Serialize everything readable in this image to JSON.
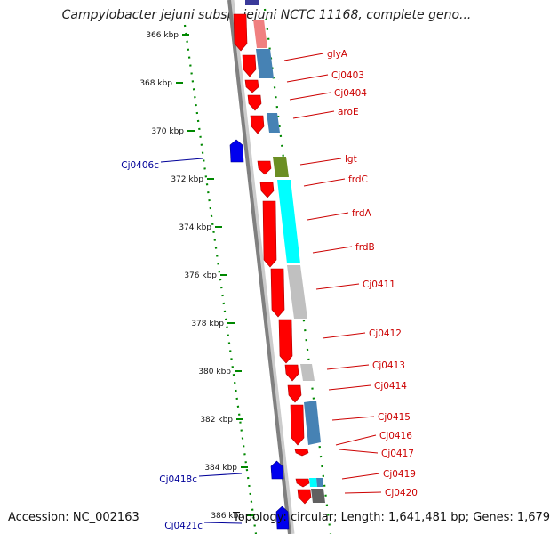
{
  "title": "Campylobacter jejuni subsp. jejuni NCTC 11168, complete geno...",
  "accession": "Accession: NC_002163",
  "summary": "Topology: circular; Length: 1,641,481 bp; Genes: 1,679",
  "ticks": [
    "366 kbp",
    "368 kbp",
    "370 kbp",
    "372 kbp",
    "374 kbp",
    "376 kbp",
    "378 kbp",
    "380 kbp",
    "382 kbp",
    "384 kbp",
    "386 kbp"
  ],
  "colors": {
    "backbone": "#808080",
    "forward_cds": "#ff0000",
    "reverse_cds": "#0000ee",
    "forward_label": "#cc0000",
    "reverse_label": "#000099",
    "gc_ring": "#008800",
    "cog_steelblue": "#4682b4",
    "cog_cyan": "#00ffff",
    "cog_olive": "#6b8e23",
    "cog_gray": "#c0c0c0",
    "cog_darkgray": "#606060",
    "cog_pink": "#f08080"
  },
  "forward_labels": [
    "glyA",
    "Cj0403",
    "Cj0404",
    "aroE",
    "lgt",
    "frdC",
    "frdA",
    "frdB",
    "Cj0411",
    "Cj0412",
    "Cj0413",
    "Cj0414",
    "Cj0415",
    "Cj0416",
    "Cj0417",
    "Cj0419",
    "Cj0420"
  ],
  "reverse_labels": [
    "Cj0406c",
    "Cj0418c",
    "Cj0421c"
  ]
}
